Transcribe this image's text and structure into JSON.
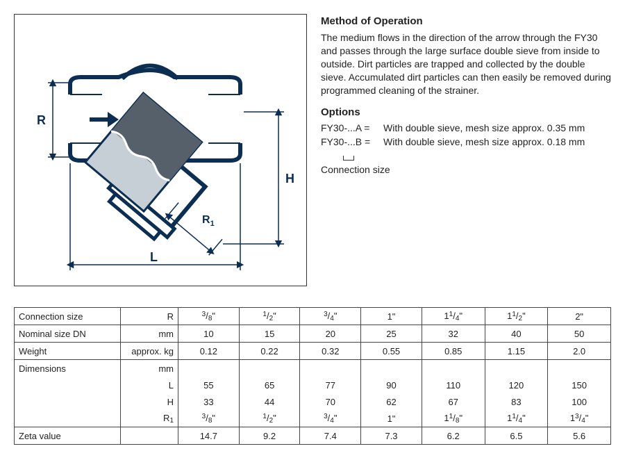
{
  "headings": {
    "method": "Method of Operation",
    "options": "Options"
  },
  "method_text": "The medium flows in the direction of the arrow through the FY30 and passes through the large surface double sieve from inside to outside. Dirt particles are trapped and collected by the double sieve. Accumulated dirt particles can then easily be removed during programmed cleaning of the strainer.",
  "options": [
    {
      "key": "FY30-...A =",
      "desc": "With double sieve, mesh size approx. 0.35 mm"
    },
    {
      "key": "FY30-...B =",
      "desc": "With double sieve, mesh size approx. 0.18 mm"
    }
  ],
  "conn_label": "Connection size",
  "diagram_labels": {
    "R": "R",
    "L": "L",
    "H": "H",
    "R1": "R",
    "R1sub": "1"
  },
  "table": {
    "rows": [
      {
        "label": "Connection size",
        "unit": "R",
        "cells": [
          "3/8\"",
          "1/2\"",
          "3/4\"",
          "1\"",
          "1 1/4\"",
          "1 1/2\"",
          "2\""
        ]
      },
      {
        "label": "Nominal size DN",
        "unit": "mm",
        "cells": [
          "10",
          "15",
          "20",
          "25",
          "32",
          "40",
          "50"
        ]
      },
      {
        "label": "Weight",
        "unit": "approx. kg",
        "cells": [
          "0.12",
          "0.22",
          "0.32",
          "0.55",
          "0.85",
          "1.15",
          "2.0"
        ]
      },
      {
        "label": "Dimensions",
        "unit": "mm",
        "cells": [
          "",
          "",
          "",
          "",
          "",
          "",
          ""
        ]
      },
      {
        "label": "",
        "unit": "L",
        "cells": [
          "55",
          "65",
          "77",
          "90",
          "110",
          "120",
          "150"
        ]
      },
      {
        "label": "",
        "unit": "H",
        "cells": [
          "33",
          "44",
          "70",
          "62",
          "67",
          "83",
          "100"
        ]
      },
      {
        "label": "",
        "unit": "R1",
        "cells": [
          "3/8\"",
          "1/2\"",
          "3/4\"",
          "1\"",
          "1 1/8\"",
          "1 1/4\"",
          "1 3/4\""
        ]
      },
      {
        "label": "Zeta value",
        "unit": "",
        "cells": [
          "14.7",
          "9.2",
          "7.4",
          "7.3",
          "6.2",
          "6.5",
          "5.6"
        ]
      }
    ]
  },
  "colors": {
    "stroke": "#0b2e52",
    "fill_dark": "#55606b",
    "fill_light": "#c6cfd6",
    "white": "#ffffff"
  }
}
